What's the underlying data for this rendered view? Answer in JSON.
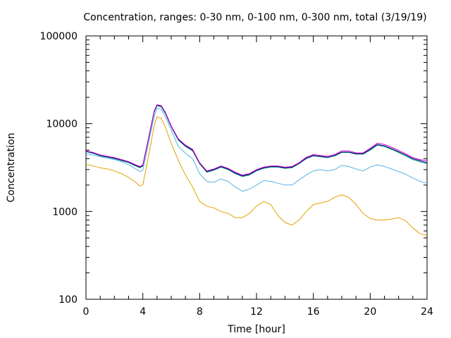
{
  "chart_data": {
    "type": "line",
    "title": "Concentration, ranges: 0-30 nm, 0-100 nm, 0-300 nm, total (3/19/19)",
    "xlabel": "Time [hour]",
    "ylabel": "Concentration",
    "xlim": [
      0,
      24
    ],
    "ylim": [
      100,
      100000
    ],
    "yscale": "log",
    "grid": false,
    "x_ticks": [
      0,
      4,
      8,
      12,
      16,
      20,
      24
    ],
    "y_ticks": [
      100,
      1000,
      10000,
      100000
    ],
    "x_tick_labels": [
      "0",
      "4",
      "8",
      "12",
      "16",
      "20",
      "24"
    ],
    "y_tick_labels": [
      "100",
      "1000",
      "10000",
      "100000"
    ],
    "x": [
      0,
      0.5,
      1,
      1.5,
      2,
      2.5,
      3,
      3.5,
      3.8,
      4,
      4.5,
      4.8,
      5,
      5.3,
      5.6,
      6,
      6.5,
      7,
      7.5,
      8,
      8.5,
      9,
      9.5,
      10,
      10.5,
      11,
      11.5,
      12,
      12.5,
      13,
      13.5,
      14,
      14.5,
      15,
      15.5,
      16,
      16.5,
      17,
      17.5,
      18,
      18.5,
      19,
      19.5,
      20,
      20.5,
      21,
      21.5,
      22,
      22.5,
      23,
      23.5,
      24
    ],
    "series": [
      {
        "color": "#e5a000",
        "values": [
          3450,
          3300,
          3150,
          3050,
          2900,
          2700,
          2450,
          2150,
          1950,
          2000,
          5200,
          9500,
          12000,
          11500,
          9000,
          6000,
          3800,
          2600,
          1900,
          1300,
          1150,
          1100,
          1000,
          950,
          850,
          850,
          950,
          1150,
          1300,
          1200,
          900,
          750,
          700,
          800,
          1000,
          1200,
          1250,
          1300,
          1450,
          1550,
          1450,
          1200,
          950,
          830,
          800,
          800,
          820,
          850,
          780,
          650,
          560,
          530
        ]
      },
      {
        "color": "#56b4e9",
        "values": [
          4550,
          4400,
          4200,
          4050,
          3900,
          3700,
          3400,
          3050,
          2850,
          2950,
          7200,
          12000,
          15000,
          14500,
          12000,
          8500,
          5500,
          4600,
          4000,
          2700,
          2200,
          2150,
          2350,
          2200,
          1900,
          1700,
          1800,
          2000,
          2250,
          2200,
          2100,
          2000,
          2000,
          2300,
          2600,
          2900,
          3000,
          2900,
          3000,
          3350,
          3250,
          3050,
          2900,
          3200,
          3400,
          3250,
          3050,
          2850,
          2650,
          2400,
          2200,
          2100
        ]
      },
      {
        "color": "#009e73",
        "values": [
          4800,
          4600,
          4300,
          4150,
          4000,
          3800,
          3600,
          3300,
          3150,
          3300,
          8000,
          13500,
          16000,
          15500,
          13000,
          9200,
          6500,
          5500,
          4900,
          3500,
          2800,
          2950,
          3200,
          3000,
          2700,
          2500,
          2600,
          2900,
          3100,
          3200,
          3200,
          3100,
          3150,
          3500,
          4000,
          4300,
          4200,
          4100,
          4300,
          4700,
          4700,
          4500,
          4500,
          5000,
          5700,
          5500,
          5100,
          4700,
          4300,
          3900,
          3700,
          3500
        ]
      },
      {
        "color": "#000080",
        "values": [
          4850,
          4650,
          4350,
          4200,
          4050,
          3850,
          3650,
          3350,
          3200,
          3350,
          8100,
          13800,
          16300,
          15800,
          13200,
          9300,
          6600,
          5600,
          5000,
          3550,
          2850,
          3000,
          3250,
          3050,
          2750,
          2550,
          2650,
          2950,
          3150,
          3250,
          3250,
          3150,
          3200,
          3550,
          4050,
          4350,
          4250,
          4150,
          4350,
          4750,
          4750,
          4550,
          4550,
          5100,
          5800,
          5600,
          5200,
          4800,
          4400,
          4000,
          3800,
          3600
        ]
      },
      {
        "color": "#cc00cc",
        "values": [
          4900,
          4700,
          4400,
          4250,
          4100,
          3900,
          3700,
          3400,
          3250,
          3400,
          8200,
          14000,
          16500,
          16000,
          13400,
          9400,
          6700,
          5700,
          5100,
          3600,
          2900,
          3050,
          3300,
          3100,
          2800,
          2600,
          2700,
          3000,
          3200,
          3300,
          3300,
          3200,
          3250,
          3600,
          4150,
          4450,
          4350,
          4250,
          4450,
          4900,
          4900,
          4650,
          4650,
          5250,
          6000,
          5800,
          5400,
          4950,
          4550,
          4100,
          3900,
          3800
        ]
      }
    ]
  }
}
